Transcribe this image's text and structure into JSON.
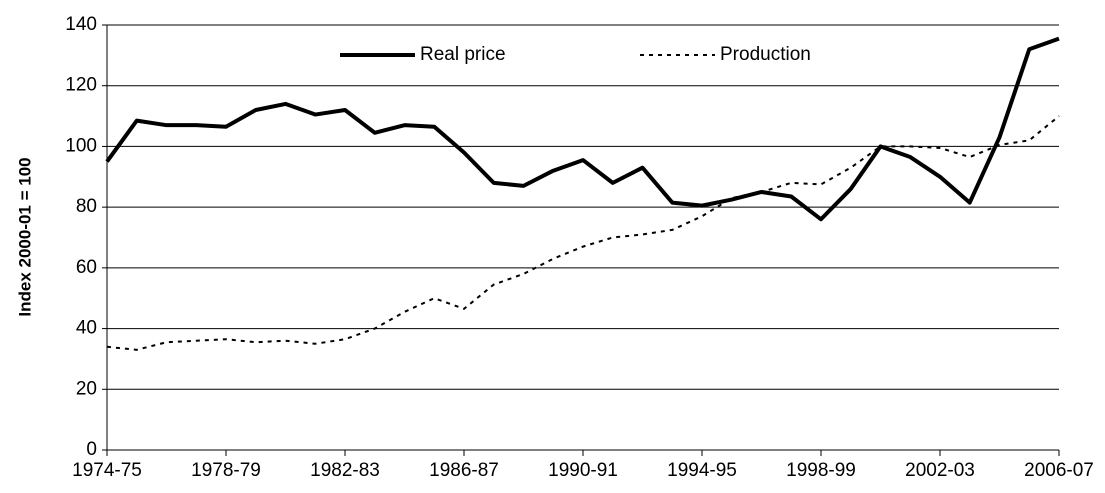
{
  "chart_data": {
    "type": "line",
    "y_label": "Index 2000-01 = 100",
    "categories": [
      "1974-75",
      null,
      null,
      null,
      "1978-79",
      null,
      null,
      null,
      "1982-83",
      null,
      null,
      null,
      "1986-87",
      null,
      null,
      null,
      "1990-91",
      null,
      null,
      null,
      "1994-95",
      null,
      null,
      null,
      "1998-99",
      null,
      null,
      null,
      "2002-03",
      null,
      null,
      null,
      "2006-07"
    ],
    "series": [
      {
        "name": "Real price",
        "color": "#000000",
        "style": "solid",
        "values": [
          95,
          108.5,
          107,
          107,
          106.5,
          112,
          114,
          110.5,
          112,
          104.5,
          107,
          106.5,
          98,
          88,
          87,
          92,
          95.5,
          88,
          93,
          81.5,
          80.5,
          82.5,
          85,
          83.5,
          76,
          86,
          100,
          96.5,
          90,
          81.5,
          103,
          132,
          135.5
        ]
      },
      {
        "name": "Production",
        "color": "#000000",
        "style": "dotted",
        "values": [
          34,
          33,
          35.5,
          36,
          36.5,
          35.5,
          36,
          35,
          36.5,
          40,
          45.5,
          50,
          46.5,
          54.5,
          58,
          63,
          67,
          70,
          71,
          72.5,
          77,
          83,
          85,
          88,
          87.5,
          93,
          100,
          100,
          99.5,
          96.5,
          100.5,
          102,
          110
        ]
      }
    ],
    "ylim": [
      0,
      140
    ],
    "yticks": [
      0,
      20,
      40,
      60,
      80,
      100,
      120,
      140
    ],
    "grid": true,
    "legend": "top"
  }
}
